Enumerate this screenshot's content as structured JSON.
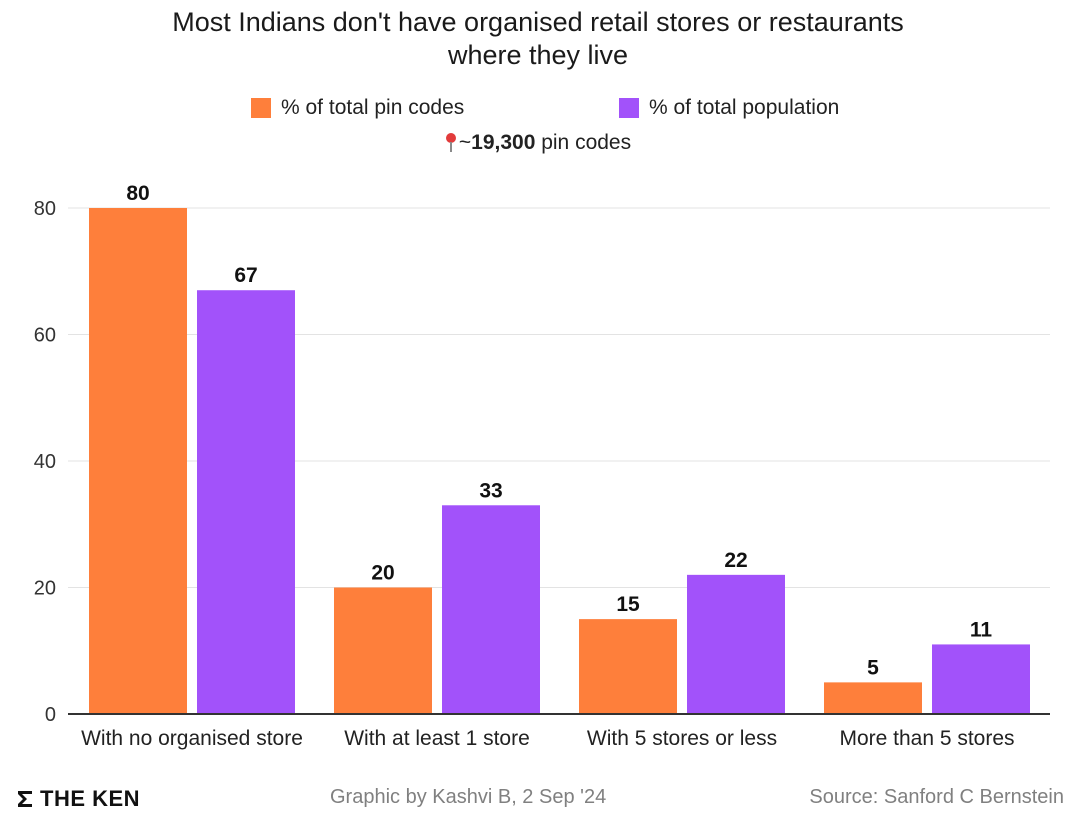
{
  "chart_data": {
    "type": "bar",
    "title": "Most Indians don't have organised retail stores or restaurants where they live",
    "title_lines": [
      "Most Indians don't have organised retail stores or restaurants",
      "where they live"
    ],
    "note": {
      "prefix": "~",
      "bold": "19,300",
      "suffix": " pin codes",
      "icon": "pin-icon"
    },
    "categories": [
      "With no organised store",
      "With at least 1 store",
      "With 5 stores or less",
      "More than 5 stores"
    ],
    "series": [
      {
        "name": "% of total pin codes",
        "color": "#fe7f3b",
        "values": [
          80,
          20,
          15,
          5
        ]
      },
      {
        "name": "% of total population",
        "color": "#a252fa",
        "values": [
          67,
          33,
          22,
          11
        ]
      }
    ],
    "ylim": [
      0,
      80
    ],
    "yticks": [
      0,
      20,
      40,
      60,
      80
    ],
    "grid": true,
    "legend_position": "top-center",
    "xlabel": "",
    "ylabel": ""
  },
  "footer": {
    "logo": "THE KEN",
    "credit": "Graphic by Kashvi B, 2 Sep '24",
    "source": "Source: Sanford C Bernstein"
  }
}
